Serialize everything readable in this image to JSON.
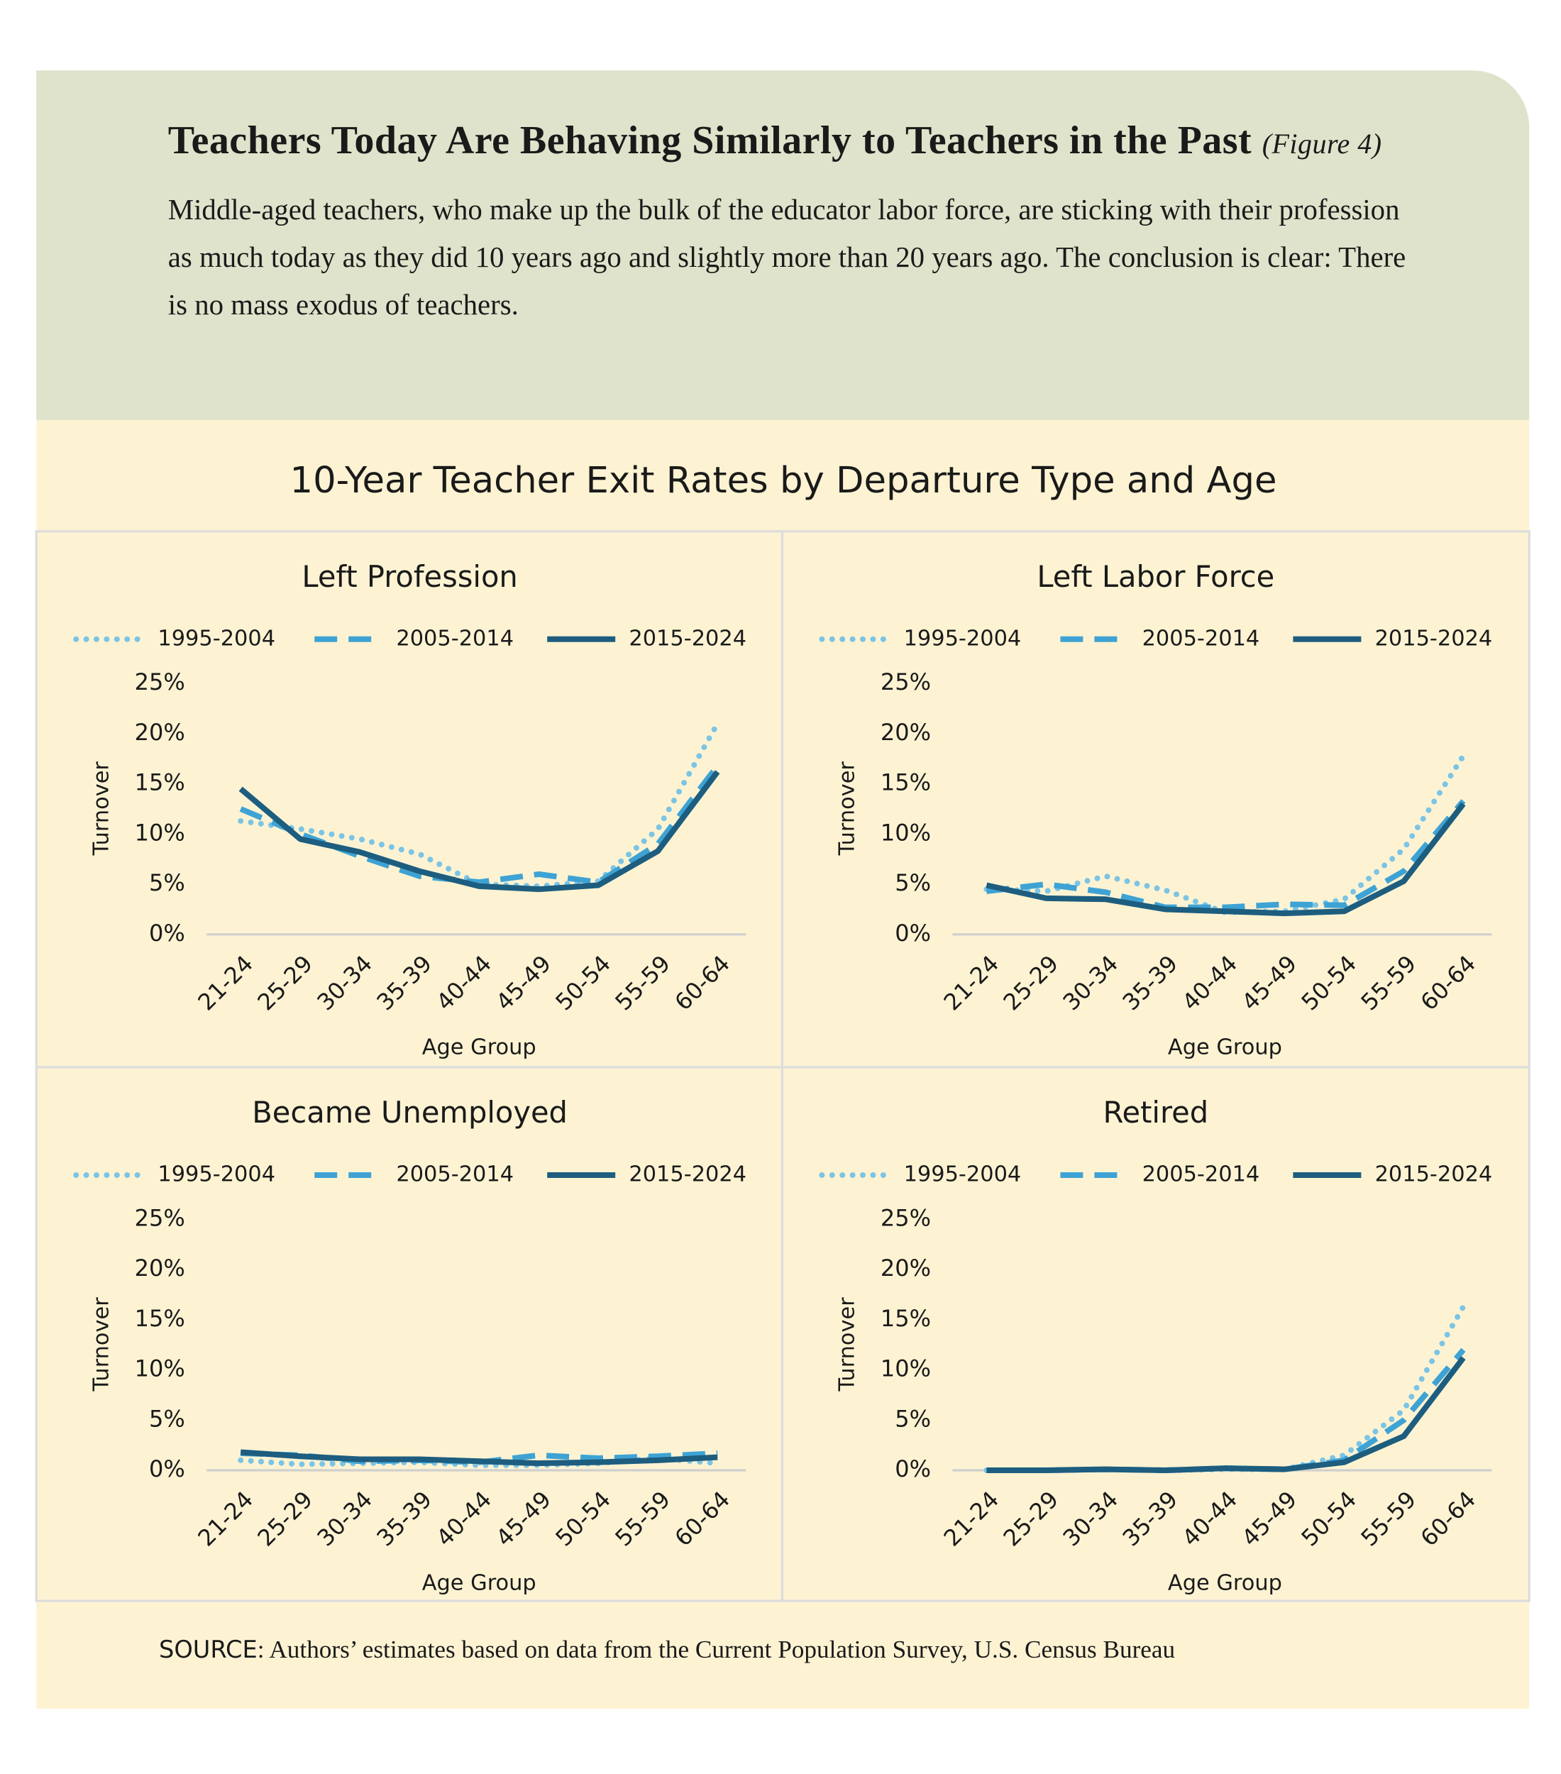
{
  "header": {
    "title": "Teachers Today Are Behaving Similarly to Teachers in the Past",
    "figure_label": "(Figure 4)",
    "description": "Middle-aged teachers, who make up the bulk of the educator labor force, are sticking with their profession as much today as they did 10 years ago and slightly more than 20 years ago. The conclusion is clear: There is no mass exodus of teachers."
  },
  "figure_title": "10-Year Teacher Exit Rates by Departure Type and Age",
  "source": {
    "label": "SOURCE",
    "text": ": Authors’ estimates based on data from the Current Population Survey, U.S. Census Bureau"
  },
  "chart_data": [
    {
      "type": "line",
      "title": "Left Profession",
      "xlabel": "Age Group",
      "ylabel": "Turnover",
      "legend": "top",
      "categories": [
        "21-24",
        "25-29",
        "30-34",
        "35-39",
        "40-44",
        "45-49",
        "50-54",
        "55-59",
        "60-64"
      ],
      "ylim": [
        0,
        25
      ],
      "yticks": [
        {
          "value": 0,
          "label": "0%"
        },
        {
          "value": 5,
          "label": "5%"
        },
        {
          "value": 10,
          "label": "10%"
        },
        {
          "value": 15,
          "label": "15%"
        },
        {
          "value": 20,
          "label": "20%"
        },
        {
          "value": 25,
          "label": "25%"
        }
      ],
      "series": [
        {
          "name": "1995-2004",
          "color": "#7cc4e4",
          "dash": "dotted",
          "values": [
            11.3,
            10.5,
            9.5,
            8.0,
            5.0,
            4.8,
            5.3,
            10.5,
            21.0
          ]
        },
        {
          "name": "2005-2014",
          "color": "#3ea3d4",
          "dash": "dashed",
          "values": [
            12.5,
            10.0,
            7.8,
            5.8,
            5.2,
            6.0,
            5.2,
            9.0,
            16.8
          ]
        },
        {
          "name": "2015-2024",
          "color": "#1d5d7f",
          "dash": "solid",
          "values": [
            14.5,
            9.5,
            8.2,
            6.3,
            4.8,
            4.5,
            4.9,
            8.3,
            16.2
          ]
        }
      ]
    },
    {
      "type": "line",
      "title": "Left Labor Force",
      "xlabel": "Age Group",
      "ylabel": "Turnover",
      "legend": "top",
      "categories": [
        "21-24",
        "25-29",
        "30-34",
        "35-39",
        "40-44",
        "45-49",
        "50-54",
        "55-59",
        "60-64"
      ],
      "ylim": [
        0,
        25
      ],
      "yticks": [
        {
          "value": 0,
          "label": "0%"
        },
        {
          "value": 5,
          "label": "5%"
        },
        {
          "value": 10,
          "label": "10%"
        },
        {
          "value": 15,
          "label": "15%"
        },
        {
          "value": 20,
          "label": "20%"
        },
        {
          "value": 25,
          "label": "25%"
        }
      ],
      "series": [
        {
          "name": "1995-2004",
          "color": "#7cc4e4",
          "dash": "dotted",
          "values": [
            4.5,
            4.3,
            5.8,
            4.4,
            2.2,
            2.3,
            3.5,
            8.5,
            17.8
          ]
        },
        {
          "name": "2005-2014",
          "color": "#3ea3d4",
          "dash": "dashed",
          "values": [
            4.3,
            5.0,
            4.2,
            2.7,
            2.7,
            3.0,
            2.9,
            6.3,
            13.3
          ]
        },
        {
          "name": "2015-2024",
          "color": "#1d5d7f",
          "dash": "solid",
          "values": [
            4.9,
            3.6,
            3.5,
            2.5,
            2.3,
            2.1,
            2.3,
            5.3,
            13.0
          ]
        }
      ]
    },
    {
      "type": "line",
      "title": "Became Unemployed",
      "xlabel": "Age Group",
      "ylabel": "Turnover",
      "legend": "top",
      "categories": [
        "21-24",
        "25-29",
        "30-34",
        "35-39",
        "40-44",
        "45-49",
        "50-54",
        "55-59",
        "60-64"
      ],
      "ylim": [
        0,
        25
      ],
      "yticks": [
        {
          "value": 0,
          "label": "0%"
        },
        {
          "value": 5,
          "label": "5%"
        },
        {
          "value": 10,
          "label": "10%"
        },
        {
          "value": 15,
          "label": "15%"
        },
        {
          "value": 20,
          "label": "20%"
        },
        {
          "value": 25,
          "label": "25%"
        }
      ],
      "series": [
        {
          "name": "1995-2004",
          "color": "#7cc4e4",
          "dash": "dotted",
          "values": [
            1.0,
            0.6,
            0.7,
            0.8,
            0.5,
            0.5,
            0.7,
            1.2,
            0.7
          ]
        },
        {
          "name": "2005-2014",
          "color": "#3ea3d4",
          "dash": "dashed",
          "values": [
            1.7,
            1.5,
            0.9,
            1.0,
            0.8,
            1.5,
            1.2,
            1.4,
            1.7
          ]
        },
        {
          "name": "2015-2024",
          "color": "#1d5d7f",
          "dash": "solid",
          "values": [
            1.8,
            1.4,
            1.1,
            1.1,
            0.9,
            0.7,
            0.8,
            1.0,
            1.3
          ]
        }
      ]
    },
    {
      "type": "line",
      "title": "Retired",
      "xlabel": "Age Group",
      "ylabel": "Turnover",
      "legend": "top",
      "categories": [
        "21-24",
        "25-29",
        "30-34",
        "35-39",
        "40-44",
        "45-49",
        "50-54",
        "55-59",
        "60-64"
      ],
      "ylim": [
        0,
        25
      ],
      "yticks": [
        {
          "value": 0,
          "label": "0%"
        },
        {
          "value": 5,
          "label": "5%"
        },
        {
          "value": 10,
          "label": "10%"
        },
        {
          "value": 15,
          "label": "15%"
        },
        {
          "value": 20,
          "label": "20%"
        },
        {
          "value": 25,
          "label": "25%"
        }
      ],
      "series": [
        {
          "name": "1995-2004",
          "color": "#7cc4e4",
          "dash": "dotted",
          "values": [
            0,
            0,
            0.1,
            0,
            0.1,
            0.1,
            1.5,
            6.0,
            16.3
          ]
        },
        {
          "name": "2005-2014",
          "color": "#3ea3d4",
          "dash": "dashed",
          "values": [
            0,
            0,
            0.1,
            0,
            0.2,
            0.1,
            1.0,
            5.0,
            12.0
          ]
        },
        {
          "name": "2015-2024",
          "color": "#1d5d7f",
          "dash": "solid",
          "values": [
            0,
            0,
            0.1,
            0,
            0.2,
            0.1,
            0.8,
            3.4,
            11.2
          ]
        }
      ]
    }
  ]
}
